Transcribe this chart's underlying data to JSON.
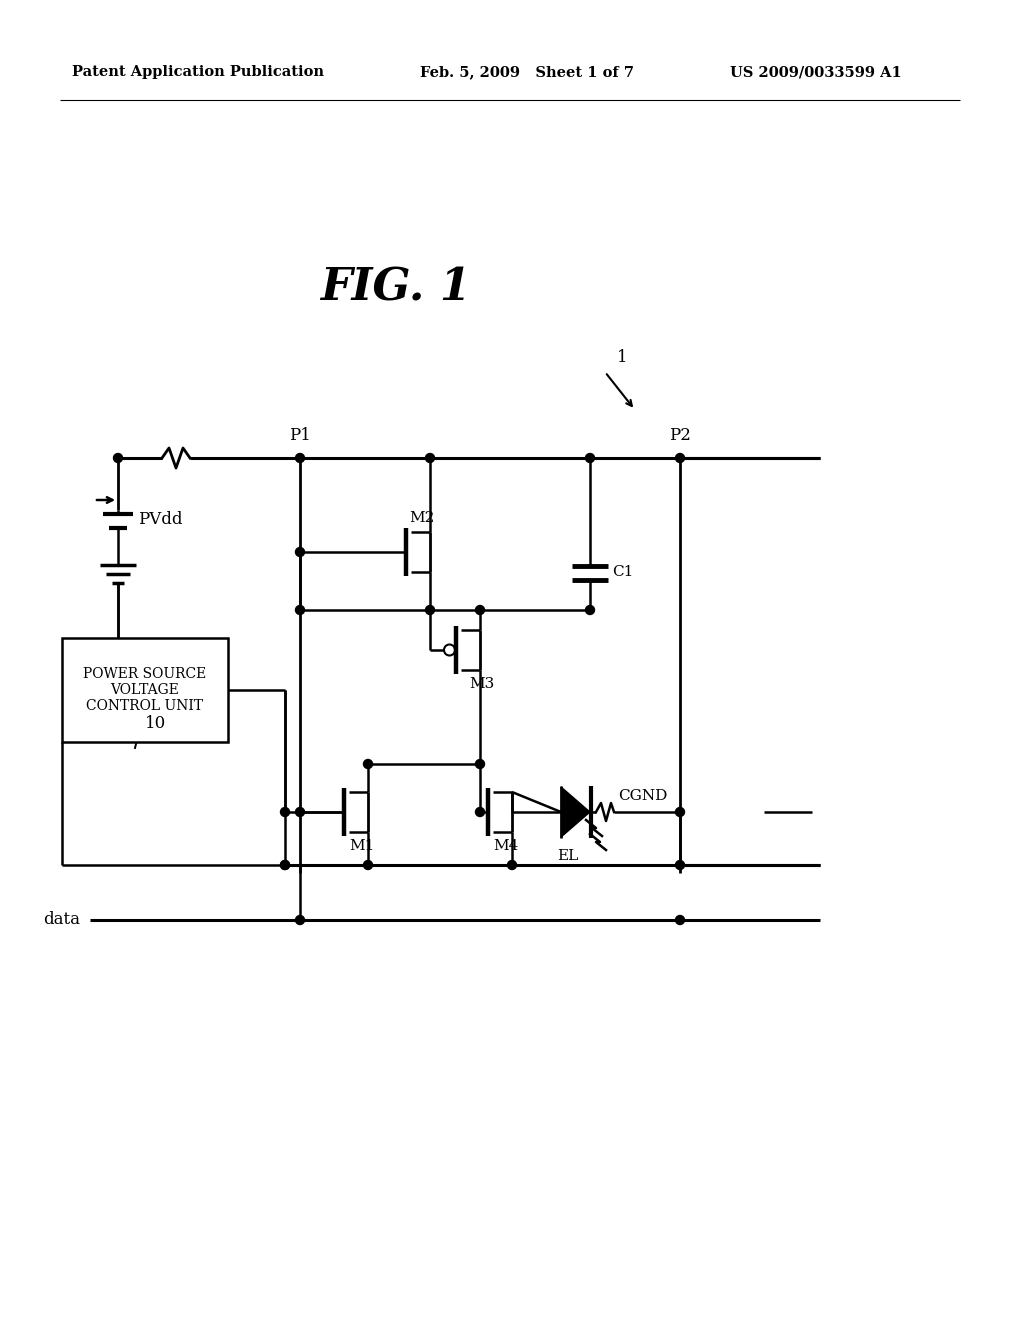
{
  "bg_color": "#ffffff",
  "header_left": "Patent Application Publication",
  "header_mid": "Feb. 5, 2009   Sheet 1 of 7",
  "header_right": "US 2009/0033599 A1",
  "fig_title": "FIG. 1",
  "label_1": "1",
  "label_P1": "P1",
  "label_P2": "P2",
  "label_PVdd": "PVdd",
  "label_10": "10",
  "label_M1": "M1",
  "label_M2": "M2",
  "label_M3": "M3",
  "label_M4": "M4",
  "label_C1": "C1",
  "label_EL": "EL",
  "label_CGND": "CGND",
  "label_data": "data",
  "box_text": "POWER SOURCE\nVOLTAGE\nCONTROL UNIT"
}
